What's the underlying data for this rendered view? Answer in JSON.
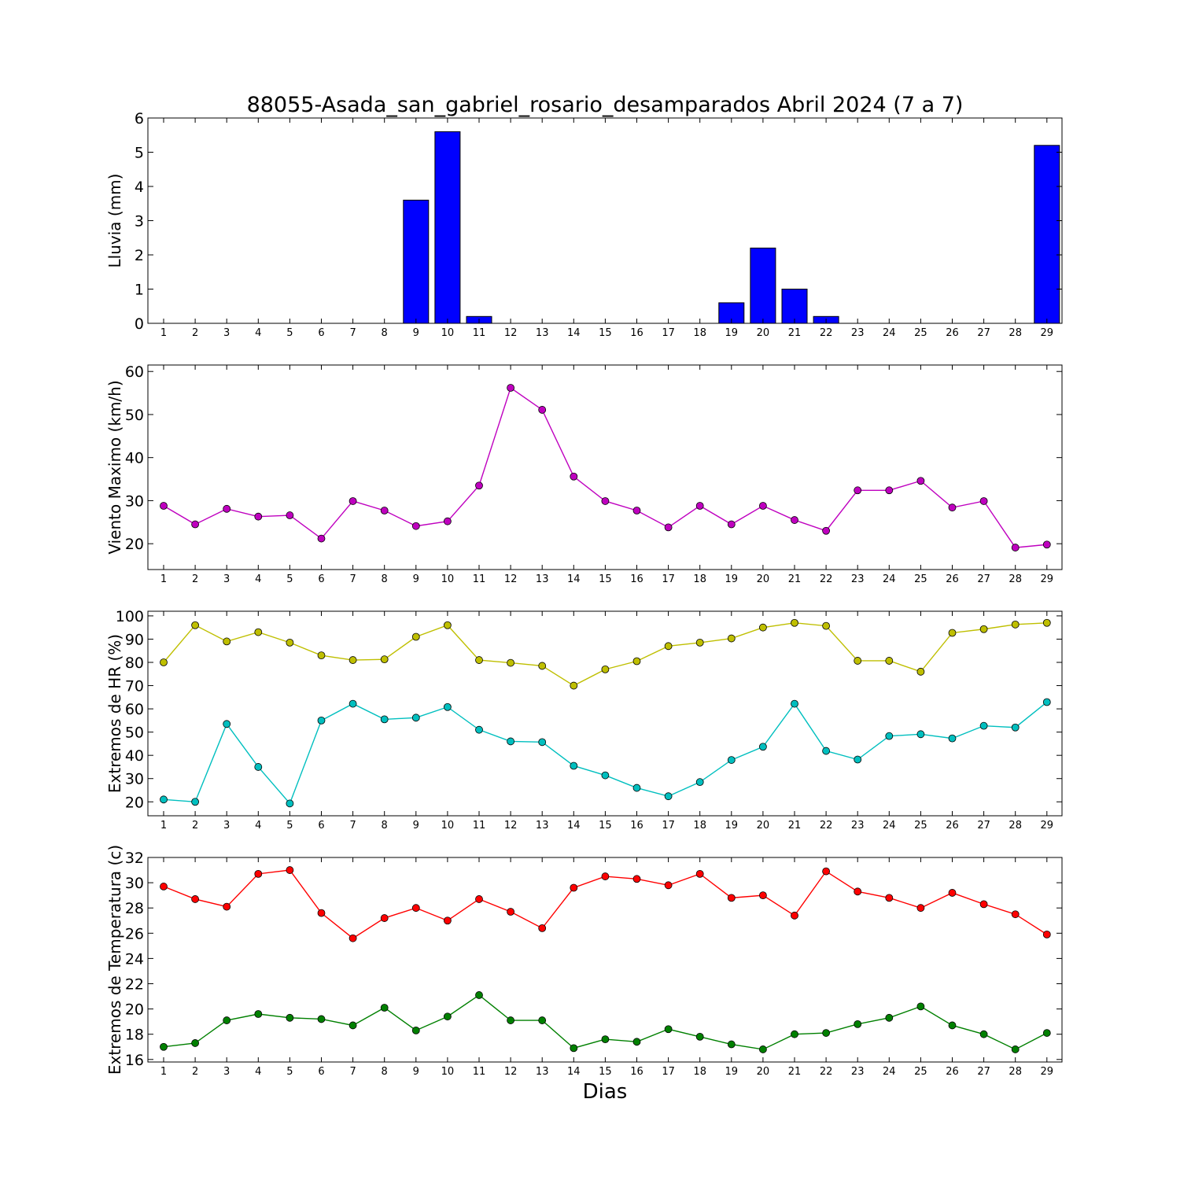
{
  "title": "88055-Asada_san_gabriel_rosario_desamparados Abril 2024  (7 a 7)",
  "xlabel": "Dias",
  "chart_data": [
    {
      "type": "bar",
      "id": "rain",
      "ylabel": "Lluvia (mm)",
      "x": [
        1,
        2,
        3,
        4,
        5,
        6,
        7,
        8,
        9,
        10,
        11,
        12,
        13,
        14,
        15,
        16,
        17,
        18,
        19,
        20,
        21,
        22,
        23,
        24,
        25,
        26,
        27,
        28,
        29
      ],
      "ylim": [
        0,
        6
      ],
      "yticks": [
        0,
        1,
        2,
        3,
        4,
        5,
        6
      ],
      "series": [
        {
          "color": "#0000ff",
          "values": [
            0,
            0,
            0,
            0,
            0,
            0,
            0,
            0,
            3.6,
            5.6,
            0.2,
            0,
            0,
            0,
            0,
            0,
            0,
            0,
            0.6,
            2.2,
            1.0,
            0.2,
            0,
            0,
            0,
            0,
            0,
            0,
            5.2
          ]
        }
      ]
    },
    {
      "type": "line",
      "id": "wind",
      "ylabel": "Viento Maximo (km/h)",
      "x": [
        1,
        2,
        3,
        4,
        5,
        6,
        7,
        8,
        9,
        10,
        11,
        12,
        13,
        14,
        15,
        16,
        17,
        18,
        19,
        20,
        21,
        22,
        23,
        24,
        25,
        26,
        27,
        28,
        29
      ],
      "ylim": [
        14,
        61.5
      ],
      "yticks": [
        20,
        30,
        40,
        50,
        60
      ],
      "series": [
        {
          "color": "#bf00bf",
          "values": [
            28.8,
            24.5,
            28.1,
            26.3,
            26.6,
            21.2,
            29.9,
            27.7,
            24.1,
            25.2,
            33.5,
            56.2,
            51.1,
            35.6,
            29.9,
            27.7,
            23.8,
            28.8,
            24.5,
            28.8,
            25.5,
            23.0,
            32.4,
            32.4,
            34.6,
            28.4,
            29.9,
            19.1,
            19.8
          ]
        }
      ]
    },
    {
      "type": "line",
      "id": "humidity",
      "ylabel": "Extremos de HR (%)",
      "x": [
        1,
        2,
        3,
        4,
        5,
        6,
        7,
        8,
        9,
        10,
        11,
        12,
        13,
        14,
        15,
        16,
        17,
        18,
        19,
        20,
        21,
        22,
        23,
        24,
        25,
        26,
        27,
        28,
        29
      ],
      "ylim": [
        14,
        102
      ],
      "yticks": [
        20,
        30,
        40,
        50,
        60,
        70,
        80,
        90,
        100
      ],
      "series": [
        {
          "color": "#bfbf00",
          "values": [
            80,
            96,
            89,
            93,
            88.5,
            83,
            81,
            81.3,
            91,
            96,
            81,
            79.8,
            78.5,
            70,
            77,
            80.5,
            87,
            88.5,
            90.3,
            95,
            97,
            95.7,
            80.7,
            80.7,
            76,
            92.7,
            94.3,
            96.3,
            97
          ]
        },
        {
          "color": "#00bfbf",
          "values": [
            21,
            20,
            53.5,
            35,
            19.3,
            55,
            62.2,
            55.5,
            56.2,
            60.8,
            51,
            46,
            45.7,
            35.5,
            31.4,
            26,
            22.4,
            28.5,
            38,
            43.7,
            62.2,
            41.9,
            38.2,
            48.3,
            49.1,
            47.3,
            52.7,
            52,
            62.9
          ]
        }
      ]
    },
    {
      "type": "line",
      "id": "temperature",
      "ylabel": "Extremos de Temperatura (c)",
      "x": [
        1,
        2,
        3,
        4,
        5,
        6,
        7,
        8,
        9,
        10,
        11,
        12,
        13,
        14,
        15,
        16,
        17,
        18,
        19,
        20,
        21,
        22,
        23,
        24,
        25,
        26,
        27,
        28,
        29
      ],
      "ylim": [
        15.8,
        32
      ],
      "yticks": [
        16,
        18,
        20,
        22,
        24,
        26,
        28,
        30,
        32
      ],
      "series": [
        {
          "color": "#ff0000",
          "values": [
            29.7,
            28.7,
            28.1,
            30.7,
            31.0,
            27.6,
            25.6,
            27.2,
            28.0,
            27.0,
            28.7,
            27.7,
            26.4,
            29.6,
            30.5,
            30.3,
            29.8,
            30.7,
            28.8,
            29.0,
            27.4,
            30.9,
            29.3,
            28.8,
            28.0,
            29.2,
            28.3,
            27.5,
            25.9
          ]
        },
        {
          "color": "#008000",
          "values": [
            17.0,
            17.3,
            19.1,
            19.6,
            19.3,
            19.2,
            18.7,
            20.1,
            18.3,
            19.4,
            21.1,
            19.1,
            19.1,
            16.9,
            17.6,
            17.4,
            18.4,
            17.8,
            17.2,
            16.8,
            18.0,
            18.1,
            18.8,
            19.3,
            20.2,
            18.7,
            18.0,
            16.8,
            18.1
          ]
        }
      ]
    }
  ]
}
